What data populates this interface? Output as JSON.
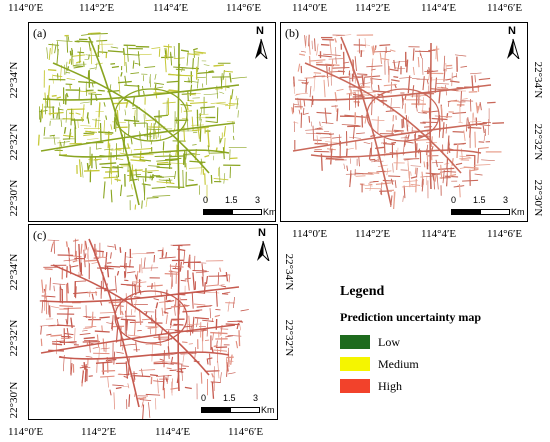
{
  "panels": [
    {
      "id": "a",
      "label": "(a)",
      "color": "#8aa521",
      "color2": "#c7c93a"
    },
    {
      "id": "b",
      "label": "(b)",
      "color": "#c9685a",
      "color2": "#e8a08e"
    },
    {
      "id": "c",
      "label": "(c)",
      "color": "#c65a4f",
      "color2": "#e28f80"
    }
  ],
  "axes": {
    "lon": [
      "114°0′E",
      "114°2′E",
      "114°4′E",
      "114°6′E"
    ],
    "lat": [
      "22°34′N",
      "22°32′N",
      "22°30′N"
    ]
  },
  "north_label": "N",
  "scale": {
    "t0": "0",
    "t1": "1.5",
    "t2": "3",
    "unit": "Km"
  },
  "legend": {
    "title": "Legend",
    "subtitle": "Prediction uncertainty map",
    "items": [
      {
        "label": "Low",
        "color": "#1e6b1e"
      },
      {
        "label": "Medium",
        "color": "#f5f500"
      },
      {
        "label": "High",
        "color": "#f2422b"
      }
    ]
  }
}
